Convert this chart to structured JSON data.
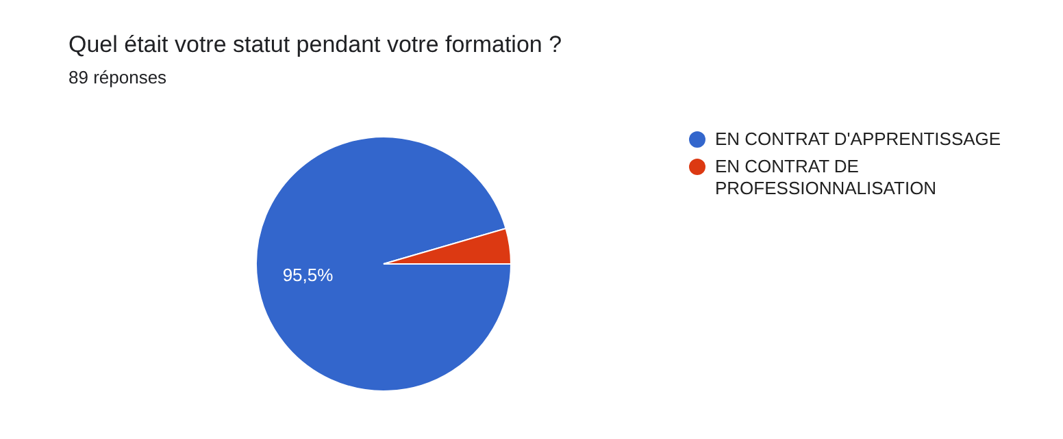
{
  "chart_data": {
    "type": "pie",
    "title": "Quel était votre statut pendant votre formation ?",
    "subtitle": "89 réponses",
    "categories": [
      "EN CONTRAT D'APPRENTISSAGE",
      "EN CONTRAT DE PROFESSIONNALISATION"
    ],
    "values": [
      95.5,
      4.5
    ],
    "colors": [
      "#3366cc",
      "#dc3912"
    ],
    "value_labels": [
      "95,5%",
      null
    ],
    "legend": "right"
  }
}
